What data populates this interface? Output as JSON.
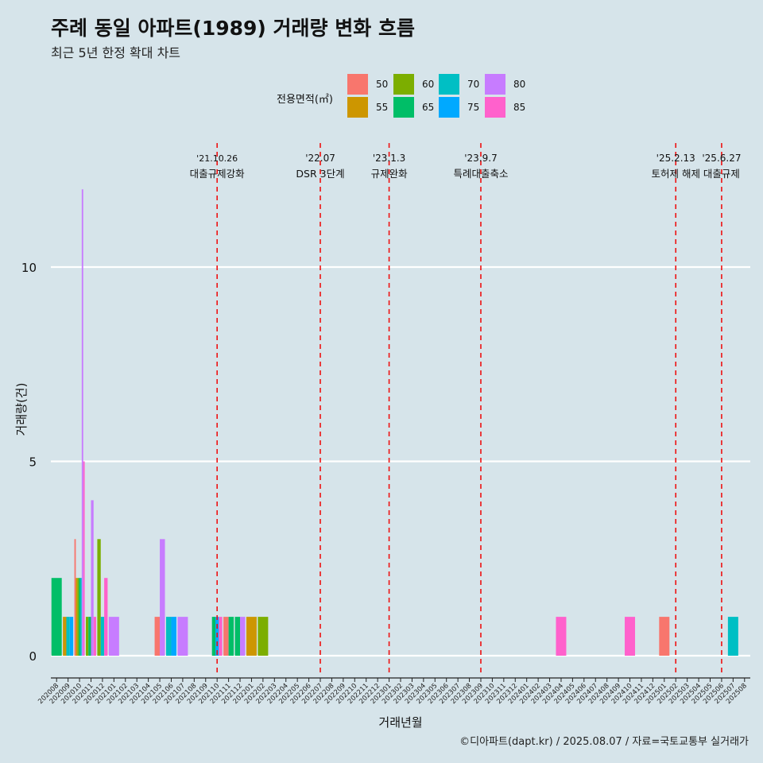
{
  "title": "주례 동일 아파트(1989) 거래량 변화 흐름",
  "subtitle": "최근 5년 한정 확대 차트",
  "caption": "©디아파트(dapt.kr) / 2025.08.07 / 자료=국토교통부 실거래가",
  "legend": {
    "title": "전용면적(㎡)",
    "items": [
      {
        "label": "50",
        "color": "#f8766d"
      },
      {
        "label": "55",
        "color": "#cd9600"
      },
      {
        "label": "60",
        "color": "#7cae00"
      },
      {
        "label": "65",
        "color": "#00be67"
      },
      {
        "label": "70",
        "color": "#00bfc4"
      },
      {
        "label": "75",
        "color": "#00a9ff"
      },
      {
        "label": "80",
        "color": "#c77cff"
      },
      {
        "label": "85",
        "color": "#ff61cc"
      }
    ]
  },
  "chart_data": {
    "type": "bar",
    "title": "주례 동일 아파트(1989) 거래량 변화 흐름",
    "subtitle": "최근 5년 한정 확대 차트",
    "xlabel": "거래년월",
    "ylabel": "거래량(건)",
    "ylim": [
      0,
      12
    ],
    "yticks": [
      0,
      5,
      10
    ],
    "grid": "horizontal",
    "legend_position": "top",
    "categories": [
      "202008",
      "202009",
      "202010",
      "202011",
      "202012",
      "202101",
      "202102",
      "202103",
      "202104",
      "202105",
      "202106",
      "202107",
      "202108",
      "202109",
      "202110",
      "202111",
      "202112",
      "202201",
      "202202",
      "202203",
      "202204",
      "202205",
      "202206",
      "202207",
      "202208",
      "202209",
      "202210",
      "202211",
      "202212",
      "202301",
      "202302",
      "202303",
      "202304",
      "202305",
      "202306",
      "202307",
      "202308",
      "202309",
      "202310",
      "202311",
      "202312",
      "202401",
      "202402",
      "202403",
      "202404",
      "202405",
      "202406",
      "202407",
      "202408",
      "202409",
      "202410",
      "202411",
      "202412",
      "202501",
      "202502",
      "202503",
      "202504",
      "202505",
      "202506",
      "202507",
      "202508"
    ],
    "series": [
      {
        "name": "50",
        "values": [
          {
            "x": "202010",
            "y": 3
          },
          {
            "x": "202105",
            "y": 1
          },
          {
            "x": "202111",
            "y": 1
          },
          {
            "x": "202501",
            "y": 1
          }
        ]
      },
      {
        "name": "55",
        "values": [
          {
            "x": "202009",
            "y": 1
          },
          {
            "x": "202010",
            "y": 2
          },
          {
            "x": "202201",
            "y": 1
          }
        ]
      },
      {
        "name": "60",
        "values": [
          {
            "x": "202010",
            "y": 2
          },
          {
            "x": "202011",
            "y": 1
          },
          {
            "x": "202012",
            "y": 3
          },
          {
            "x": "202202",
            "y": 1
          }
        ]
      },
      {
        "name": "65",
        "values": [
          {
            "x": "202008",
            "y": 2
          },
          {
            "x": "202010",
            "y": 2
          },
          {
            "x": "202011",
            "y": 1
          },
          {
            "x": "202110",
            "y": 1
          },
          {
            "x": "202111",
            "y": 1
          },
          {
            "x": "202112",
            "y": 1
          }
        ]
      },
      {
        "name": "70",
        "values": [
          {
            "x": "202009",
            "y": 1
          },
          {
            "x": "202010",
            "y": 2
          },
          {
            "x": "202012",
            "y": 1
          },
          {
            "x": "202106",
            "y": 1
          },
          {
            "x": "202507",
            "y": 1
          }
        ]
      },
      {
        "name": "75",
        "values": [
          {
            "x": "202009",
            "y": 1
          },
          {
            "x": "202106",
            "y": 1
          },
          {
            "x": "202110",
            "y": 1
          }
        ]
      },
      {
        "name": "80",
        "values": [
          {
            "x": "202010",
            "y": 12
          },
          {
            "x": "202011",
            "y": 4
          },
          {
            "x": "202101",
            "y": 1
          },
          {
            "x": "202105",
            "y": 3
          },
          {
            "x": "202107",
            "y": 1
          },
          {
            "x": "202112",
            "y": 1
          }
        ]
      },
      {
        "name": "85",
        "values": [
          {
            "x": "202010",
            "y": 5
          },
          {
            "x": "202011",
            "y": 1
          },
          {
            "x": "202012",
            "y": 2
          },
          {
            "x": "202110",
            "y": 1
          },
          {
            "x": "202404",
            "y": 1
          },
          {
            "x": "202410",
            "y": 1
          }
        ]
      }
    ],
    "annotations": [
      {
        "x": "202110",
        "date": "'21.10.26",
        "label": "대출규제강화"
      },
      {
        "x": "202207",
        "date": "'22.07",
        "label": "DSR 3단계"
      },
      {
        "x": "202301",
        "date": "'23.1.3",
        "label": "규제완화"
      },
      {
        "x": "202309",
        "date": "'23.9.7",
        "label": "특례대출축소"
      },
      {
        "x": "202502",
        "date": "'25.2.13",
        "label": "토허제 해제"
      },
      {
        "x": "202506",
        "date": "'25.6.27",
        "label": "대출규제"
      }
    ]
  }
}
